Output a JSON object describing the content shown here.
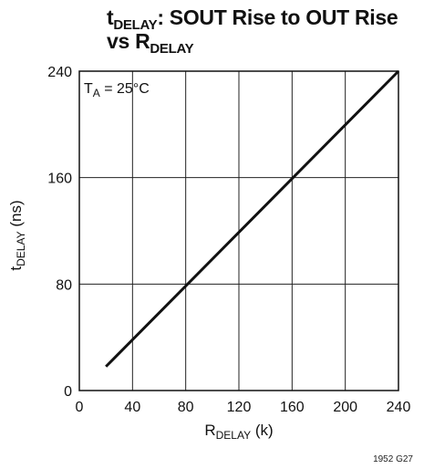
{
  "chart_data": {
    "type": "line",
    "title_main": "t",
    "title_sub": "DELAY",
    "title_rest": ": SOUT Rise to OUT Rise",
    "title_line2_main": "vs R",
    "title_line2_sub": "DELAY",
    "ylabel_main": "t",
    "ylabel_sub": "DELAY",
    "ylabel_rest": " (ns)",
    "xlabel_main": "R",
    "xlabel_sub": "DELAY",
    "xlabel_rest": " (k)",
    "annotation_main": "T",
    "annotation_sub": "A",
    "annotation_rest": " = 25°C",
    "figure_code": "1952 G27",
    "xlim": [
      0,
      240
    ],
    "ylim": [
      0,
      240
    ],
    "xticks": [
      "0",
      "40",
      "80",
      "120",
      "160",
      "200",
      "240"
    ],
    "yticks": [
      "0",
      "80",
      "160",
      "240"
    ],
    "xtick_values": [
      0,
      40,
      80,
      120,
      160,
      200,
      240
    ],
    "ytick_values": [
      0,
      80,
      160,
      240
    ],
    "grid": true,
    "series": [
      {
        "x": [
          20,
          240
        ],
        "y": [
          18,
          240
        ]
      }
    ]
  }
}
